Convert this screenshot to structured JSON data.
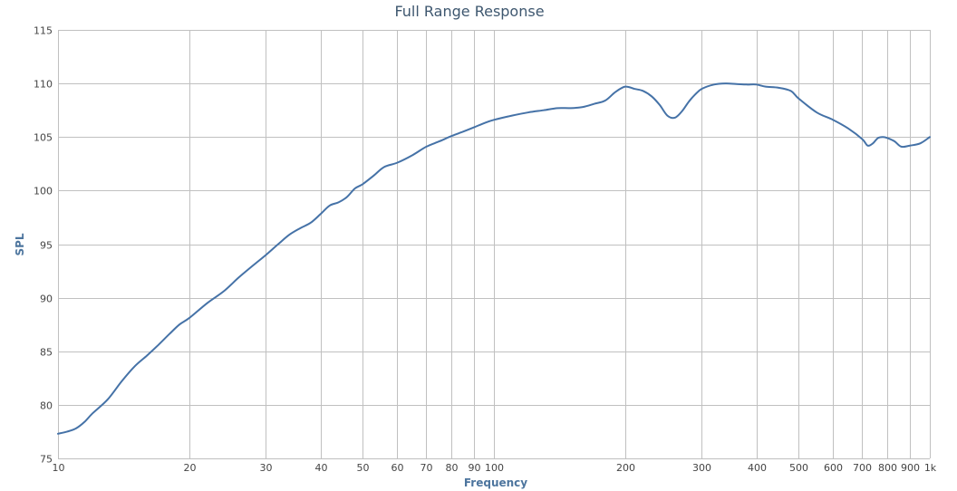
{
  "chart_data": {
    "type": "line",
    "title": "Full Range Response",
    "xlabel": "Frequency",
    "ylabel": "SPL",
    "x_scale": "log",
    "xlim": [
      10,
      1000
    ],
    "ylim": [
      75,
      115
    ],
    "grid": true,
    "legend": "none",
    "colors": {
      "series": "#4572a7",
      "title": "#3e576f",
      "axis_title": "#4d759e",
      "grid": "#c0c0c0"
    },
    "x_ticks": [
      {
        "value": 10,
        "label": "10"
      },
      {
        "value": 20,
        "label": "20"
      },
      {
        "value": 30,
        "label": "30"
      },
      {
        "value": 40,
        "label": "40"
      },
      {
        "value": 50,
        "label": "50"
      },
      {
        "value": 60,
        "label": "60"
      },
      {
        "value": 70,
        "label": "70"
      },
      {
        "value": 80,
        "label": "80"
      },
      {
        "value": 90,
        "label": "90"
      },
      {
        "value": 100,
        "label": "100"
      },
      {
        "value": 200,
        "label": "200"
      },
      {
        "value": 300,
        "label": "300"
      },
      {
        "value": 400,
        "label": "400"
      },
      {
        "value": 500,
        "label": "500"
      },
      {
        "value": 600,
        "label": "600"
      },
      {
        "value": 700,
        "label": "700"
      },
      {
        "value": 800,
        "label": "800"
      },
      {
        "value": 900,
        "label": "900"
      },
      {
        "value": 1000,
        "label": "1k"
      }
    ],
    "y_ticks": [
      {
        "value": 75,
        "label": "75"
      },
      {
        "value": 80,
        "label": "80"
      },
      {
        "value": 85,
        "label": "85"
      },
      {
        "value": 90,
        "label": "90"
      },
      {
        "value": 95,
        "label": "95"
      },
      {
        "value": 100,
        "label": "100"
      },
      {
        "value": 105,
        "label": "105"
      },
      {
        "value": 110,
        "label": "110"
      },
      {
        "value": 115,
        "label": "115"
      }
    ],
    "series": [
      {
        "x": [
          10,
          10.5,
          11,
          11.5,
          12,
          13,
          14,
          15,
          16,
          17,
          18,
          19,
          20,
          22,
          24,
          26,
          28,
          30,
          32,
          34,
          36,
          38,
          40,
          42,
          44,
          46,
          48,
          50,
          53,
          56,
          60,
          65,
          70,
          75,
          80,
          85,
          90,
          95,
          100,
          110,
          120,
          130,
          140,
          150,
          160,
          170,
          180,
          190,
          200,
          210,
          220,
          230,
          240,
          250,
          260,
          270,
          280,
          290,
          300,
          320,
          340,
          360,
          380,
          400,
          420,
          450,
          480,
          500,
          550,
          600,
          650,
          700,
          720,
          740,
          760,
          780,
          800,
          830,
          860,
          900,
          950,
          1000
        ],
        "values": [
          77.3,
          77.5,
          77.8,
          78.4,
          79.2,
          80.5,
          82.2,
          83.6,
          84.6,
          85.6,
          86.6,
          87.5,
          88.1,
          89.5,
          90.6,
          91.9,
          93.0,
          94.0,
          95.0,
          95.9,
          96.5,
          97.0,
          97.8,
          98.6,
          98.9,
          99.4,
          100.2,
          100.6,
          101.4,
          102.2,
          102.6,
          103.3,
          104.1,
          104.6,
          105.1,
          105.5,
          105.9,
          106.3,
          106.6,
          107.0,
          107.3,
          107.5,
          107.7,
          107.7,
          107.8,
          108.1,
          108.4,
          109.2,
          109.7,
          109.5,
          109.3,
          108.8,
          108.0,
          107.0,
          106.8,
          107.4,
          108.3,
          109.0,
          109.5,
          109.9,
          110.0,
          109.95,
          109.9,
          109.9,
          109.7,
          109.6,
          109.3,
          108.6,
          107.3,
          106.6,
          105.8,
          104.8,
          104.2,
          104.4,
          104.9,
          105.0,
          104.9,
          104.6,
          104.1,
          104.2,
          104.4,
          105.0
        ]
      }
    ]
  }
}
